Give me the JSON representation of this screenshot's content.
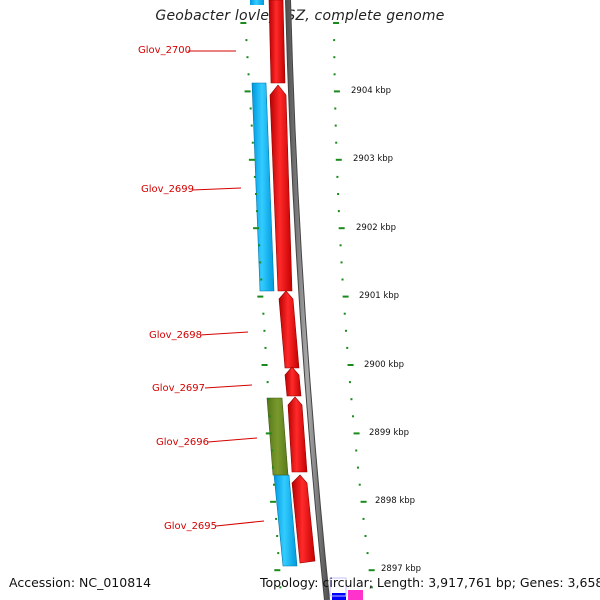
{
  "title": "Geobacter lovleyi SZ, complete genome",
  "footer": {
    "accession": "Accession: NC_010814",
    "topology": "Topology: circular; Length: 3,917,761 bp; Genes: 3,658"
  },
  "gene_labels": [
    "Glov_2700",
    "Glov_2699",
    "Glov_2698",
    "Glov_2697",
    "Glov_2696",
    "Glov_2695"
  ],
  "ruler_labels": [
    "2904 kbp",
    "2903 kbp",
    "2902 kbp",
    "2901 kbp",
    "2900 kbp",
    "2899 kbp",
    "2898 kbp",
    "2897 kbp"
  ],
  "colors": {
    "forward_cds": "#ff0000",
    "reverse_cds": "#00b4ff",
    "other_feature": "#6b8e23",
    "backbone": "#7f7f7f",
    "label": "#d40000",
    "ticks": "#1a8a1a",
    "blue_feature": "#0000ff",
    "magenta_feature": "#ff33cc"
  }
}
